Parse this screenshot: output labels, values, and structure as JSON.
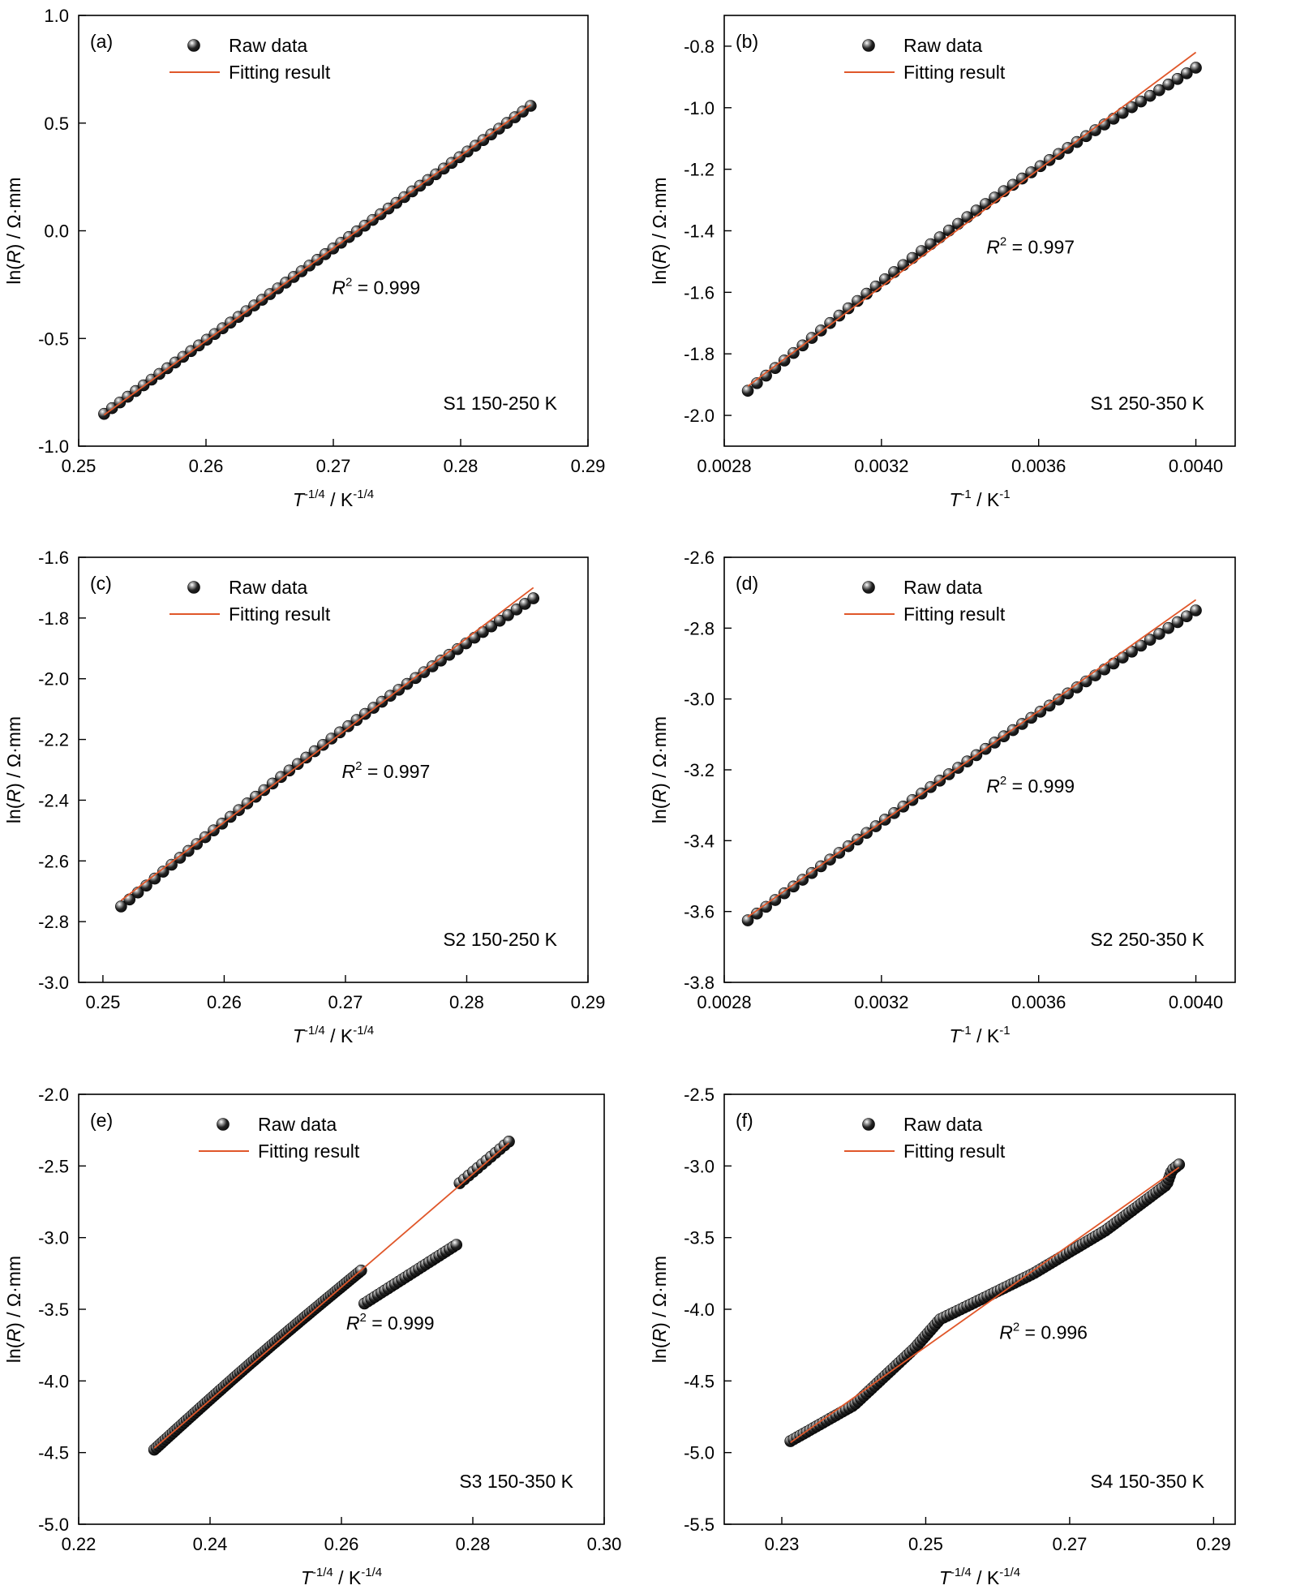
{
  "figure": {
    "legend": {
      "raw_label": "Raw data",
      "fit_label": "Fitting result"
    },
    "colors": {
      "fit_line": "#e0572a",
      "marker": "#111111",
      "axis": "#000000"
    }
  },
  "chart_data": [
    {
      "type": "scatter",
      "panel_label": "(a)",
      "annotation": "S1 150-250 K",
      "r2_label": "0.999",
      "xlabel": {
        "base": "T",
        "exp": "-1/4",
        "unit": " / K",
        "unit_exp": "-1/4"
      },
      "ylabel": "ln(R) / Ω·mm",
      "xlim": [
        0.25,
        0.29
      ],
      "ylim": [
        -1.0,
        1.0
      ],
      "xticks": [
        "0.25",
        "0.26",
        "0.27",
        "0.28",
        "0.29"
      ],
      "yticks": [
        "-1.0",
        "-0.5",
        "0.0",
        "0.5",
        "1.0"
      ],
      "legend_position": "top-left",
      "series": [
        {
          "name": "Raw data",
          "kind": "points",
          "x_range": [
            0.252,
            0.2855
          ],
          "y_range": [
            -0.85,
            0.58
          ],
          "count": 55,
          "sag": 0.0
        },
        {
          "name": "Fitting result",
          "kind": "line",
          "x": [
            0.252,
            0.2855
          ],
          "y": [
            -0.855,
            0.585
          ]
        }
      ]
    },
    {
      "type": "scatter",
      "panel_label": "(b)",
      "annotation": "S1 250-350 K",
      "r2_label": "0.997",
      "xlabel": {
        "base": "T",
        "exp": "-1",
        "unit": " / K",
        "unit_exp": "-1"
      },
      "ylabel": "ln(R) / Ω·mm",
      "xlim": [
        0.0028,
        0.0041
      ],
      "ylim": [
        -2.1,
        -0.7
      ],
      "xticks": [
        "0.0028",
        "0.0032",
        "0.0036",
        "0.0040"
      ],
      "yticks": [
        "-2.0",
        "-1.8",
        "-1.6",
        "-1.4",
        "-1.2",
        "-1.0",
        "-0.8"
      ],
      "legend_position": "top-center",
      "series": [
        {
          "name": "Raw data",
          "kind": "points",
          "x_range": [
            0.00286,
            0.004
          ],
          "y_range": [
            -1.92,
            -0.87
          ],
          "count": 50,
          "sag": 0.05
        },
        {
          "name": "Fitting result",
          "kind": "line",
          "x": [
            0.00286,
            0.004
          ],
          "y": [
            -1.905,
            -0.82
          ]
        }
      ]
    },
    {
      "type": "scatter",
      "panel_label": "(c)",
      "annotation": "S2 150-250 K",
      "r2_label": "0.997",
      "xlabel": {
        "base": "T",
        "exp": "-1/4",
        "unit": " / K",
        "unit_exp": "-1/4"
      },
      "ylabel": "ln(R) / Ω·mm",
      "xlim": [
        0.248,
        0.29
      ],
      "ylim": [
        -3.0,
        -1.6
      ],
      "xticks": [
        "0.25",
        "0.26",
        "0.27",
        "0.28",
        "0.29"
      ],
      "yticks": [
        "-3.0",
        "-2.8",
        "-2.6",
        "-2.4",
        "-2.2",
        "-2.0",
        "-1.8",
        "-1.6"
      ],
      "legend_position": "top-left",
      "series": [
        {
          "name": "Raw data",
          "kind": "points",
          "x_range": [
            0.2515,
            0.2855
          ],
          "y_range": [
            -2.75,
            -1.735
          ],
          "count": 50,
          "sag": 0.035
        },
        {
          "name": "Fitting result",
          "kind": "line",
          "x": [
            0.2515,
            0.2855
          ],
          "y": [
            -2.73,
            -1.7
          ]
        }
      ]
    },
    {
      "type": "scatter",
      "panel_label": "(d)",
      "annotation": "S2 250-350 K",
      "r2_label": "0.999",
      "xlabel": {
        "base": "T",
        "exp": "-1",
        "unit": " / K",
        "unit_exp": "-1"
      },
      "ylabel": "ln(R) / Ω·mm",
      "xlim": [
        0.0028,
        0.0041
      ],
      "ylim": [
        -3.8,
        -2.6
      ],
      "xticks": [
        "0.0028",
        "0.0032",
        "0.0036",
        "0.0040"
      ],
      "yticks": [
        "-3.8",
        "-3.6",
        "-3.4",
        "-3.2",
        "-3.0",
        "-2.8",
        "-2.6"
      ],
      "legend_position": "top-center",
      "series": [
        {
          "name": "Raw data",
          "kind": "points",
          "x_range": [
            0.00286,
            0.004
          ],
          "y_range": [
            -3.625,
            -2.75
          ],
          "count": 50,
          "sag": 0.02
        },
        {
          "name": "Fitting result",
          "kind": "line",
          "x": [
            0.00286,
            0.004
          ],
          "y": [
            -3.615,
            -2.72
          ]
        }
      ]
    },
    {
      "type": "scatter",
      "panel_label": "(e)",
      "annotation": "S3 150-350 K",
      "r2_label": "0.999",
      "xlabel": {
        "base": "T",
        "exp": "-1/4",
        "unit": " / K",
        "unit_exp": "-1/4"
      },
      "ylabel": "ln(R) / Ω·mm",
      "xlim": [
        0.22,
        0.3
      ],
      "ylim": [
        -5.0,
        -2.0
      ],
      "xticks": [
        "0.22",
        "0.24",
        "0.26",
        "0.28",
        "0.30"
      ],
      "yticks": [
        "-5.0",
        "-4.5",
        "-4.0",
        "-3.5",
        "-3.0",
        "-2.5",
        "-2.0"
      ],
      "legend_position": "top-center",
      "series": [
        {
          "name": "Raw data",
          "kind": "points",
          "x_range": [
            0.2315,
            0.263
          ],
          "y_range": [
            -4.48,
            -3.23
          ],
          "count": 90,
          "sag": 0.02
        },
        {
          "name": "Raw data",
          "kind": "points",
          "x_range": [
            0.2635,
            0.2775
          ],
          "y_range": [
            -3.46,
            -3.05
          ],
          "count": 28,
          "sag": 0.0
        },
        {
          "name": "Raw data",
          "kind": "points",
          "x_range": [
            0.278,
            0.2855
          ],
          "y_range": [
            -2.62,
            -2.33
          ],
          "count": 12,
          "sag": 0.0
        },
        {
          "name": "Fitting result",
          "kind": "line",
          "x": [
            0.2315,
            0.2855
          ],
          "y": [
            -4.47,
            -2.34
          ]
        }
      ]
    },
    {
      "type": "scatter",
      "panel_label": "(f)",
      "annotation": "S4 150-350 K",
      "r2_label": "0.996",
      "xlabel": {
        "base": "T",
        "exp": "-1/4",
        "unit": " / K",
        "unit_exp": "-1/4"
      },
      "ylabel": "ln(R) / Ω·mm",
      "xlim": [
        0.222,
        0.293
      ],
      "ylim": [
        -5.5,
        -2.5
      ],
      "xticks": [
        "0.23",
        "0.25",
        "0.27",
        "0.29"
      ],
      "yticks": [
        "-5.5",
        "-5.0",
        "-4.5",
        "-4.0",
        "-3.5",
        "-3.0",
        "-2.5"
      ],
      "legend_position": "top-center",
      "series": [
        {
          "name": "Raw data",
          "kind": "polyline-points",
          "count": 130,
          "x": [
            0.2312,
            0.24,
            0.2485,
            0.252,
            0.2565,
            0.265,
            0.275,
            0.2835,
            0.2842,
            0.2852
          ],
          "y": [
            -4.92,
            -4.67,
            -4.27,
            -4.07,
            -3.96,
            -3.75,
            -3.45,
            -3.13,
            -3.03,
            -2.99
          ]
        },
        {
          "name": "Fitting result",
          "kind": "line",
          "x": [
            0.2312,
            0.2852
          ],
          "y": [
            -4.93,
            -3.01
          ]
        }
      ]
    }
  ]
}
